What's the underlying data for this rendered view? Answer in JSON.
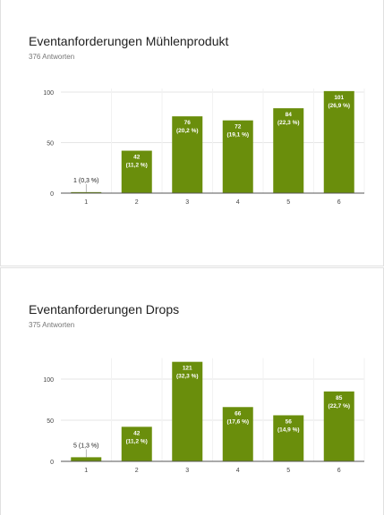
{
  "colors": {
    "bar": "#6a8e0c",
    "grid": "#e6e6e6",
    "axis": "#555555",
    "label_inside": "#ffffff",
    "label_outside": "#222222"
  },
  "questions": [
    {
      "title": "Eventanforderungen Mühlenprodukt",
      "responses": "376 Antworten"
    },
    {
      "title": "Eventanforderungen Drops",
      "responses": "375 Antworten"
    }
  ],
  "chart_data": [
    {
      "type": "bar",
      "categories": [
        "1",
        "2",
        "3",
        "4",
        "5",
        "6"
      ],
      "values": [
        1,
        42,
        76,
        72,
        84,
        101
      ],
      "value_labels": [
        "1 (0,3 %)",
        "42",
        "76",
        "72",
        "84",
        "101"
      ],
      "percent_labels": [
        "",
        "(11,2 %)",
        "(20,2 %)",
        "(19,1 %)",
        "(22,3 %)",
        "(26,9 %)"
      ],
      "yticks": [
        0,
        50,
        100
      ],
      "ylim": [
        0,
        100
      ],
      "grid": true
    },
    {
      "type": "bar",
      "categories": [
        "1",
        "2",
        "3",
        "4",
        "5",
        "6"
      ],
      "values": [
        5,
        42,
        121,
        66,
        56,
        85
      ],
      "value_labels": [
        "5 (1,3 %)",
        "42",
        "121",
        "66",
        "56",
        "85"
      ],
      "percent_labels": [
        "",
        "(11,2 %)",
        "(32,3 %)",
        "(17,6 %)",
        "(14,9 %)",
        "(22,7 %)"
      ],
      "yticks": [
        0,
        50,
        100
      ],
      "ylim": [
        0,
        121
      ],
      "grid": true
    }
  ]
}
